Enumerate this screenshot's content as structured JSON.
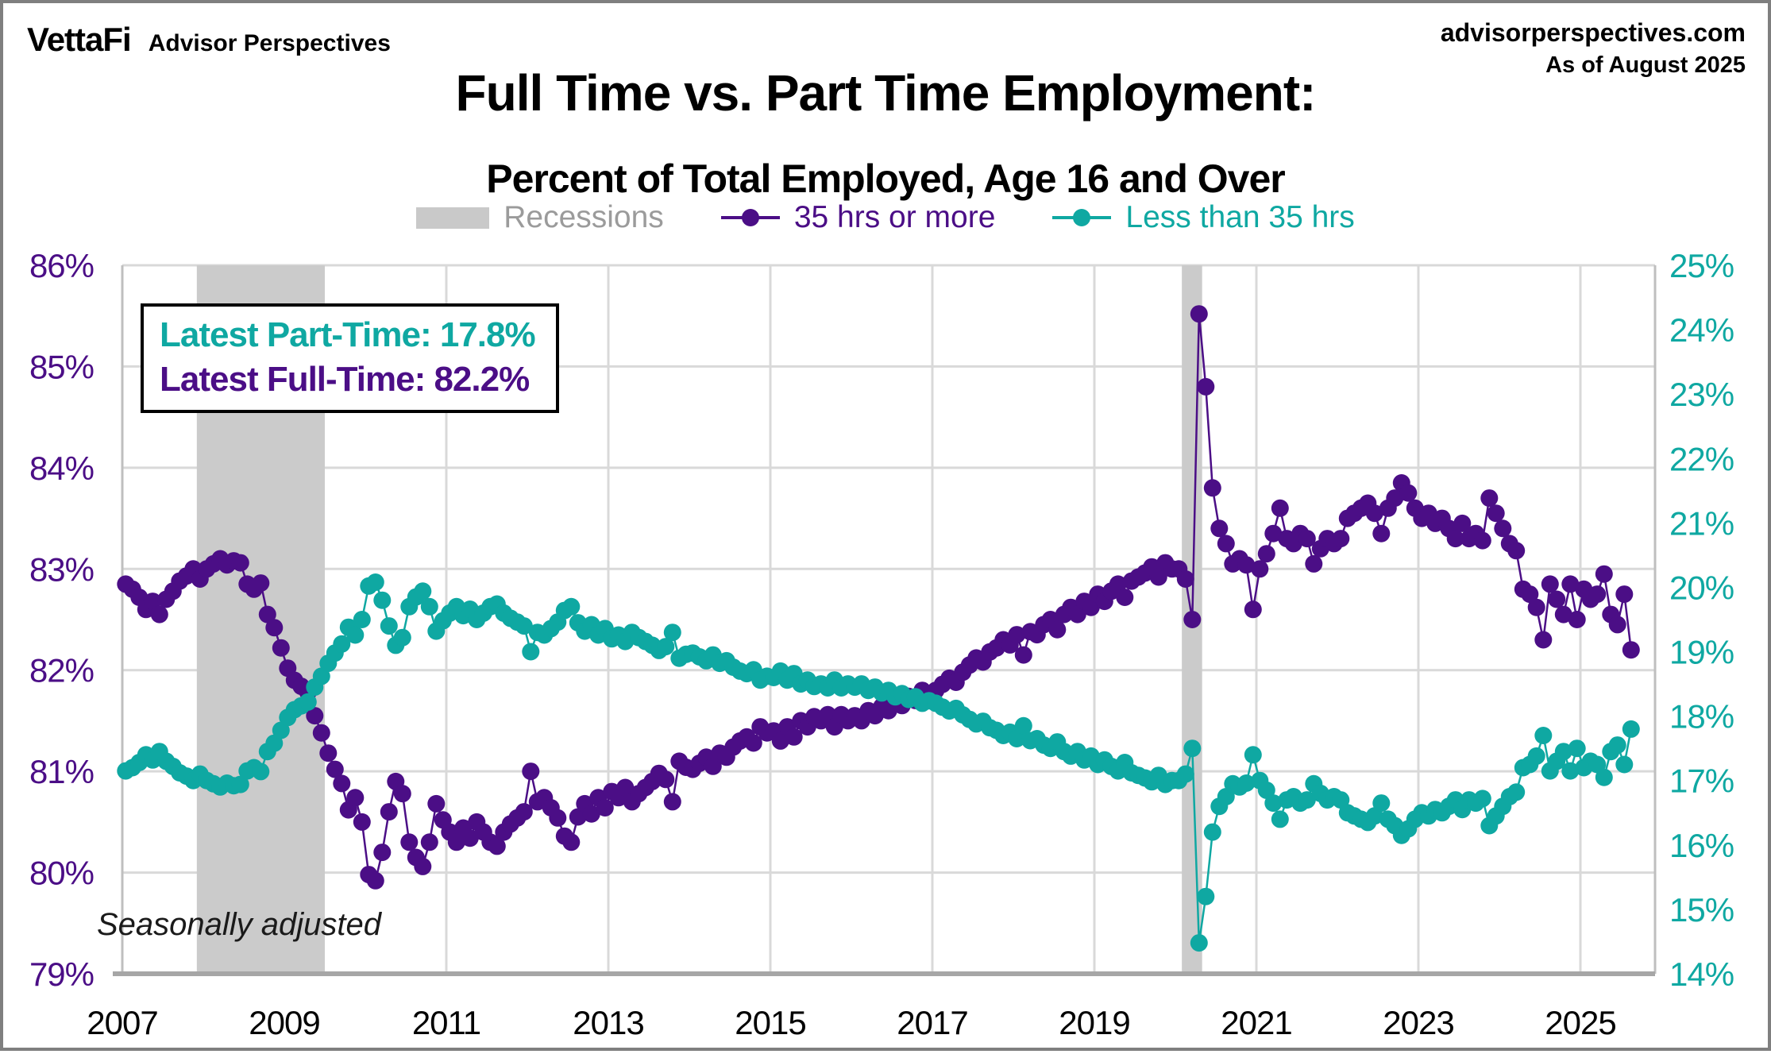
{
  "header": {
    "logo_primary": "VettaFi",
    "logo_secondary": "Advisor Perspectives",
    "source_site": "advisorperspectives.com",
    "as_of": "As of August 2025"
  },
  "title": {
    "line1": "Full Time vs. Part Time Employment:",
    "line2": "Percent of Total Employed, Age 16 and Over"
  },
  "legend": [
    {
      "label": "Recessions",
      "type": "band",
      "color": "#c9c9c9",
      "text_color": "#9b9b9b"
    },
    {
      "label": "35 hrs or more",
      "type": "line",
      "color": "#4b0e86",
      "text_color": "#4b0e86"
    },
    {
      "label": "Less than 35 hrs",
      "type": "line",
      "color": "#0fa8a2",
      "text_color": "#0fa8a2"
    }
  ],
  "annotation": {
    "part_time_line": "Latest Part-Time: 17.8%",
    "full_time_line": "Latest Full-Time: 82.2%"
  },
  "footnote": "Seasonally adjusted",
  "colors": {
    "full_time": "#4b0e86",
    "part_time": "#0fa8a2",
    "recession_band": "#cbcbcb",
    "gridline": "#d9d9d9",
    "axis_edge": "#bfbfbf",
    "axis_bottom": "#a6a6a6",
    "x_label": "#000000"
  },
  "chart_data": {
    "type": "line",
    "frequency": "monthly",
    "x_start": "2007-01",
    "x_end": "2025-08",
    "x_ticks": [
      "2007",
      "2009",
      "2011",
      "2013",
      "2015",
      "2017",
      "2019",
      "2021",
      "2023",
      "2025"
    ],
    "left_axis": {
      "min": 79,
      "max": 86,
      "ticks": [
        "86%",
        "85%",
        "84%",
        "83%",
        "82%",
        "81%",
        "80%",
        "79%"
      ],
      "color": "#4b0e86"
    },
    "right_axis": {
      "min": 14,
      "max": 25,
      "ticks": [
        "25%",
        "24%",
        "23%",
        "22%",
        "21%",
        "20%",
        "19%",
        "18%",
        "17%",
        "16%",
        "15%",
        "14%"
      ],
      "color": "#0fa8a2"
    },
    "grid": true,
    "legend_position": "top",
    "recessions": [
      {
        "start": 2007.92,
        "end": 2009.5
      },
      {
        "start": 2020.08,
        "end": 2020.33
      }
    ],
    "series": [
      {
        "name": "35 hrs or more",
        "axis": "left",
        "color": "#4b0e86",
        "latest": 82.2,
        "values": [
          82.85,
          82.8,
          82.72,
          82.6,
          82.68,
          82.55,
          82.7,
          82.78,
          82.88,
          82.93,
          83.0,
          82.9,
          83.0,
          83.05,
          83.1,
          83.04,
          83.08,
          83.06,
          82.85,
          82.8,
          82.86,
          82.55,
          82.42,
          82.22,
          82.02,
          81.9,
          81.84,
          81.78,
          81.55,
          81.38,
          81.18,
          81.02,
          80.88,
          80.62,
          80.74,
          80.5,
          79.98,
          79.92,
          80.2,
          80.6,
          80.9,
          80.78,
          80.3,
          80.15,
          80.06,
          80.3,
          80.68,
          80.52,
          80.4,
          80.3,
          80.44,
          80.34,
          80.5,
          80.4,
          80.3,
          80.26,
          80.4,
          80.48,
          80.54,
          80.6,
          81.0,
          80.7,
          80.74,
          80.64,
          80.54,
          80.36,
          80.3,
          80.55,
          80.68,
          80.58,
          80.74,
          80.64,
          80.8,
          80.74,
          80.84,
          80.7,
          80.78,
          80.84,
          80.9,
          80.98,
          80.92,
          80.7,
          81.1,
          81.04,
          81.02,
          81.08,
          81.14,
          81.05,
          81.18,
          81.14,
          81.24,
          81.3,
          81.34,
          81.28,
          81.44,
          81.38,
          81.4,
          81.3,
          81.44,
          81.34,
          81.5,
          81.44,
          81.54,
          81.5,
          81.56,
          81.44,
          81.56,
          81.5,
          81.55,
          81.5,
          81.6,
          81.55,
          81.64,
          81.6,
          81.7,
          81.65,
          81.74,
          81.7,
          81.8,
          81.76,
          81.8,
          81.86,
          81.92,
          81.88,
          81.98,
          82.05,
          82.12,
          82.08,
          82.18,
          82.22,
          82.3,
          82.25,
          82.35,
          82.15,
          82.38,
          82.35,
          82.45,
          82.5,
          82.4,
          82.55,
          82.62,
          82.55,
          82.68,
          82.62,
          82.75,
          82.68,
          82.78,
          82.85,
          82.72,
          82.88,
          82.92,
          82.96,
          83.02,
          82.92,
          83.06,
          83.0,
          83.0,
          82.9,
          82.5,
          85.52,
          84.8,
          83.8,
          83.4,
          83.25,
          83.05,
          83.1,
          83.04,
          82.6,
          83.0,
          83.15,
          83.35,
          83.6,
          83.3,
          83.25,
          83.35,
          83.3,
          83.05,
          83.2,
          83.3,
          83.25,
          83.3,
          83.5,
          83.55,
          83.6,
          83.65,
          83.55,
          83.35,
          83.6,
          83.7,
          83.85,
          83.75,
          83.6,
          83.5,
          83.55,
          83.45,
          83.5,
          83.4,
          83.3,
          83.45,
          83.3,
          83.35,
          83.28,
          83.7,
          83.55,
          83.4,
          83.25,
          83.18,
          82.8,
          82.75,
          82.62,
          82.3,
          82.85,
          82.7,
          82.55,
          82.85,
          82.5,
          82.8,
          82.7,
          82.75,
          82.95,
          82.55,
          82.45,
          82.75,
          82.2
        ]
      },
      {
        "name": "Less than 35 hrs",
        "axis": "right",
        "color": "#0fa8a2",
        "latest": 17.8,
        "values": [
          17.15,
          17.2,
          17.28,
          17.4,
          17.32,
          17.45,
          17.3,
          17.22,
          17.12,
          17.07,
          17.0,
          17.1,
          17.0,
          16.95,
          16.9,
          16.96,
          16.92,
          16.94,
          17.15,
          17.2,
          17.14,
          17.45,
          17.58,
          17.78,
          17.98,
          18.1,
          18.16,
          18.22,
          18.45,
          18.62,
          18.82,
          18.98,
          19.12,
          19.38,
          19.26,
          19.5,
          20.02,
          20.08,
          19.8,
          19.4,
          19.1,
          19.22,
          19.7,
          19.85,
          19.94,
          19.7,
          19.32,
          19.48,
          19.6,
          19.7,
          19.56,
          19.66,
          19.5,
          19.6,
          19.7,
          19.74,
          19.6,
          19.52,
          19.46,
          19.4,
          19.0,
          19.3,
          19.26,
          19.36,
          19.46,
          19.64,
          19.7,
          19.45,
          19.32,
          19.42,
          19.26,
          19.36,
          19.2,
          19.26,
          19.16,
          19.3,
          19.22,
          19.16,
          19.1,
          19.02,
          19.08,
          19.3,
          18.9,
          18.96,
          18.98,
          18.92,
          18.86,
          18.95,
          18.82,
          18.86,
          18.76,
          18.7,
          18.66,
          18.72,
          18.56,
          18.62,
          18.6,
          18.7,
          18.56,
          18.66,
          18.5,
          18.56,
          18.46,
          18.5,
          18.44,
          18.56,
          18.44,
          18.5,
          18.45,
          18.5,
          18.4,
          18.45,
          18.36,
          18.4,
          18.3,
          18.35,
          18.26,
          18.3,
          18.2,
          18.24,
          18.2,
          18.14,
          18.08,
          18.12,
          18.02,
          17.95,
          17.88,
          17.92,
          17.82,
          17.78,
          17.7,
          17.75,
          17.65,
          17.85,
          17.62,
          17.65,
          17.55,
          17.5,
          17.6,
          17.45,
          17.38,
          17.45,
          17.32,
          17.38,
          17.25,
          17.32,
          17.22,
          17.15,
          17.28,
          17.12,
          17.08,
          17.04,
          16.98,
          17.08,
          16.94,
          17.0,
          17.0,
          17.1,
          17.5,
          14.48,
          15.2,
          16.2,
          16.6,
          16.75,
          16.95,
          16.9,
          16.96,
          17.4,
          17.0,
          16.85,
          16.65,
          16.4,
          16.7,
          16.75,
          16.65,
          16.7,
          16.95,
          16.8,
          16.7,
          16.75,
          16.7,
          16.5,
          16.45,
          16.4,
          16.35,
          16.45,
          16.65,
          16.4,
          16.3,
          16.15,
          16.25,
          16.4,
          16.5,
          16.45,
          16.55,
          16.5,
          16.6,
          16.7,
          16.55,
          16.7,
          16.65,
          16.72,
          16.3,
          16.45,
          16.6,
          16.75,
          16.82,
          17.2,
          17.25,
          17.38,
          17.7,
          17.15,
          17.3,
          17.45,
          17.15,
          17.5,
          17.2,
          17.3,
          17.25,
          17.05,
          17.45,
          17.55,
          17.25,
          17.8
        ]
      }
    ]
  }
}
